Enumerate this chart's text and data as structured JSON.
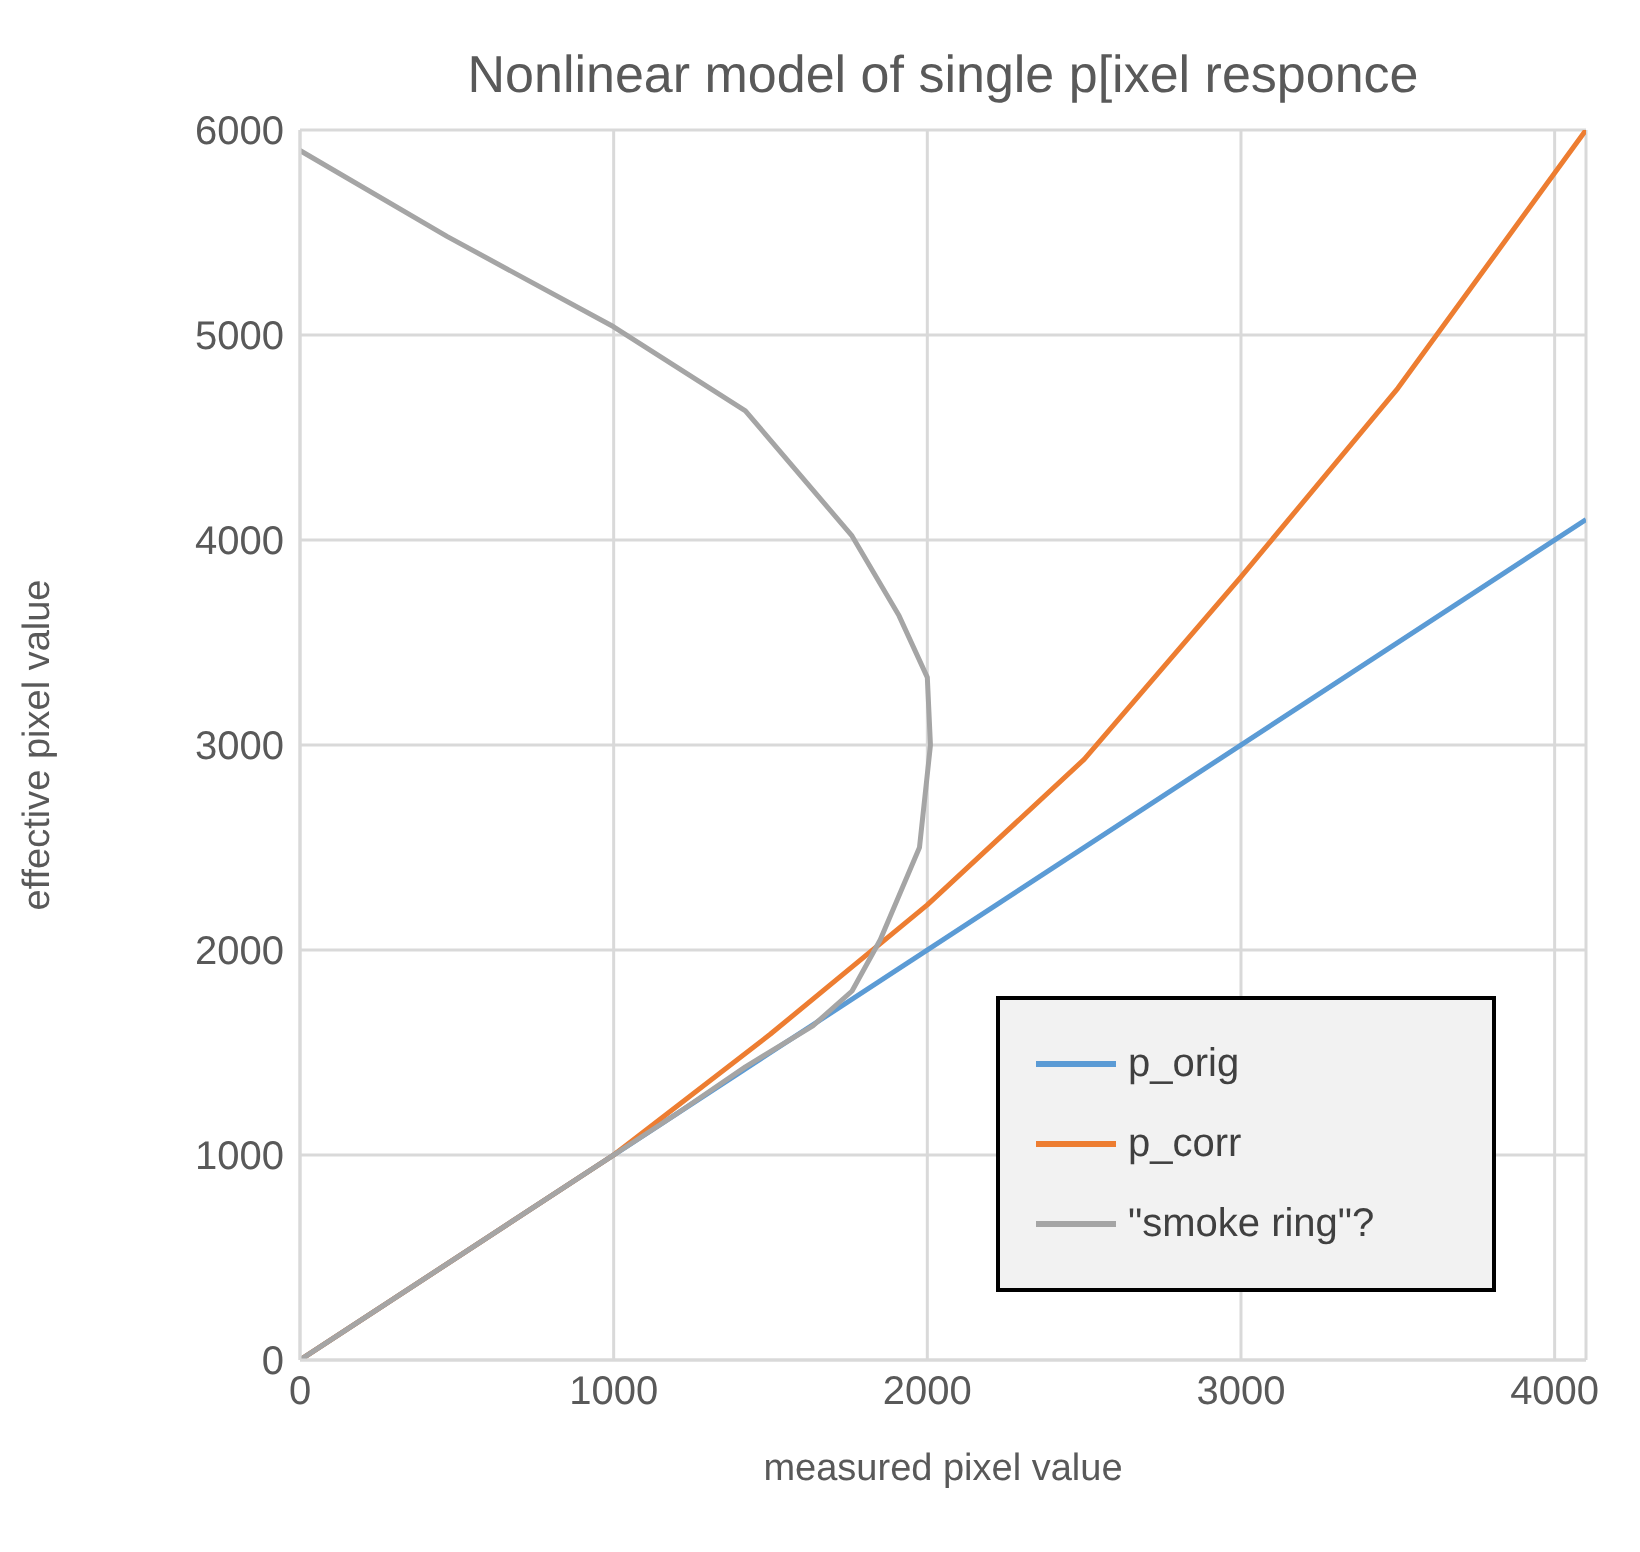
{
  "chart_data": {
    "type": "line",
    "title": "Nonlinear model of  single p[ixel responce",
    "xlabel": "measured pixel value",
    "ylabel": "effective pixel value",
    "xlim": [
      0,
      4100
    ],
    "xticks": [
      0,
      1000,
      2000,
      3000,
      4000
    ],
    "ylim": [
      0,
      6000
    ],
    "yticks": [
      0,
      1000,
      2000,
      3000,
      4000,
      5000,
      6000
    ],
    "grid": true,
    "legend": "bottom right",
    "marker": "none",
    "line_style": "solid",
    "series": [
      {
        "name": "p_orig",
        "color": "#5b9bd5",
        "x": [
          0,
          4100
        ],
        "values": [
          0,
          4100
        ]
      },
      {
        "name": "p_corr",
        "color": "#ed7d31",
        "x": [
          0,
          1000,
          1500,
          2000,
          2500,
          3000,
          3500,
          4100
        ],
        "values": [
          0,
          1000,
          1590,
          2220,
          2930,
          3820,
          4740,
          6000
        ]
      },
      {
        "name": "\"smoke ring\"?",
        "color": "#a5a5a5",
        "x": [
          0,
          1000,
          1200,
          1420,
          1635,
          1760,
          1850,
          1975,
          2010,
          2000,
          1910,
          1760,
          1420,
          1000,
          470,
          0
        ],
        "values": [
          0,
          1000,
          1200,
          1430,
          1630,
          1800,
          2050,
          2500,
          3000,
          3330,
          3630,
          4020,
          4630,
          5040,
          5480,
          5900
        ]
      }
    ]
  }
}
